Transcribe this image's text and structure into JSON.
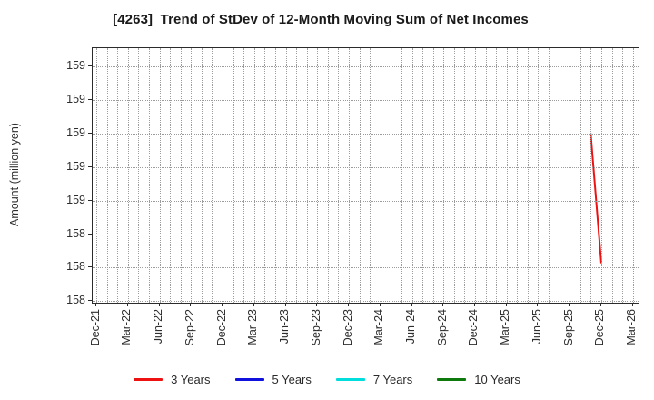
{
  "chart_data": {
    "type": "line",
    "title": "[4263]  Trend of StDev of 12-Month Moving Sum of Net Incomes",
    "ylabel": "Amount (million yen)",
    "xlabel": "",
    "grid": true,
    "gridline_style": "dotted",
    "legend_position": "bottom",
    "x_unit": "months since Dec-21",
    "xlim_months": [
      -0.35,
      51.55
    ],
    "ylim": [
      157.99,
      159.51
    ],
    "y_ticks": [
      {
        "value": 159.4,
        "label": "159"
      },
      {
        "value": 159.2,
        "label": "159"
      },
      {
        "value": 159.0,
        "label": "159"
      },
      {
        "value": 158.8,
        "label": "159"
      },
      {
        "value": 158.6,
        "label": "159"
      },
      {
        "value": 158.4,
        "label": "158"
      },
      {
        "value": 158.2,
        "label": "158"
      },
      {
        "value": 158.0,
        "label": "158"
      }
    ],
    "x_ticks": [
      {
        "month_index": 0,
        "label": "Dec-21"
      },
      {
        "month_index": 3,
        "label": "Mar-22"
      },
      {
        "month_index": 6,
        "label": "Jun-22"
      },
      {
        "month_index": 9,
        "label": "Sep-22"
      },
      {
        "month_index": 12,
        "label": "Dec-22"
      },
      {
        "month_index": 15,
        "label": "Mar-23"
      },
      {
        "month_index": 18,
        "label": "Jun-23"
      },
      {
        "month_index": 21,
        "label": "Sep-23"
      },
      {
        "month_index": 24,
        "label": "Dec-23"
      },
      {
        "month_index": 27,
        "label": "Mar-24"
      },
      {
        "month_index": 30,
        "label": "Jun-24"
      },
      {
        "month_index": 33,
        "label": "Sep-24"
      },
      {
        "month_index": 36,
        "label": "Dec-24"
      },
      {
        "month_index": 39,
        "label": "Mar-25"
      },
      {
        "month_index": 42,
        "label": "Jun-25"
      },
      {
        "month_index": 45,
        "label": "Sep-25"
      },
      {
        "month_index": 48,
        "label": "Dec-25"
      },
      {
        "month_index": 51,
        "label": "Mar-26"
      }
    ],
    "minor_gridlines_every_month": true,
    "series": [
      {
        "name": "3 Years",
        "color": "#ee1111",
        "points": [
          {
            "month": "Nov-25",
            "month_index": 47,
            "value": 159.0
          },
          {
            "month": "Dec-25",
            "month_index": 48,
            "value": 158.23
          }
        ]
      },
      {
        "name": "5 Years",
        "color": "#1111dd",
        "points": []
      },
      {
        "name": "7 Years",
        "color": "#00dddd",
        "points": []
      },
      {
        "name": "10 Years",
        "color": "#0e7a0e",
        "points": []
      }
    ]
  }
}
